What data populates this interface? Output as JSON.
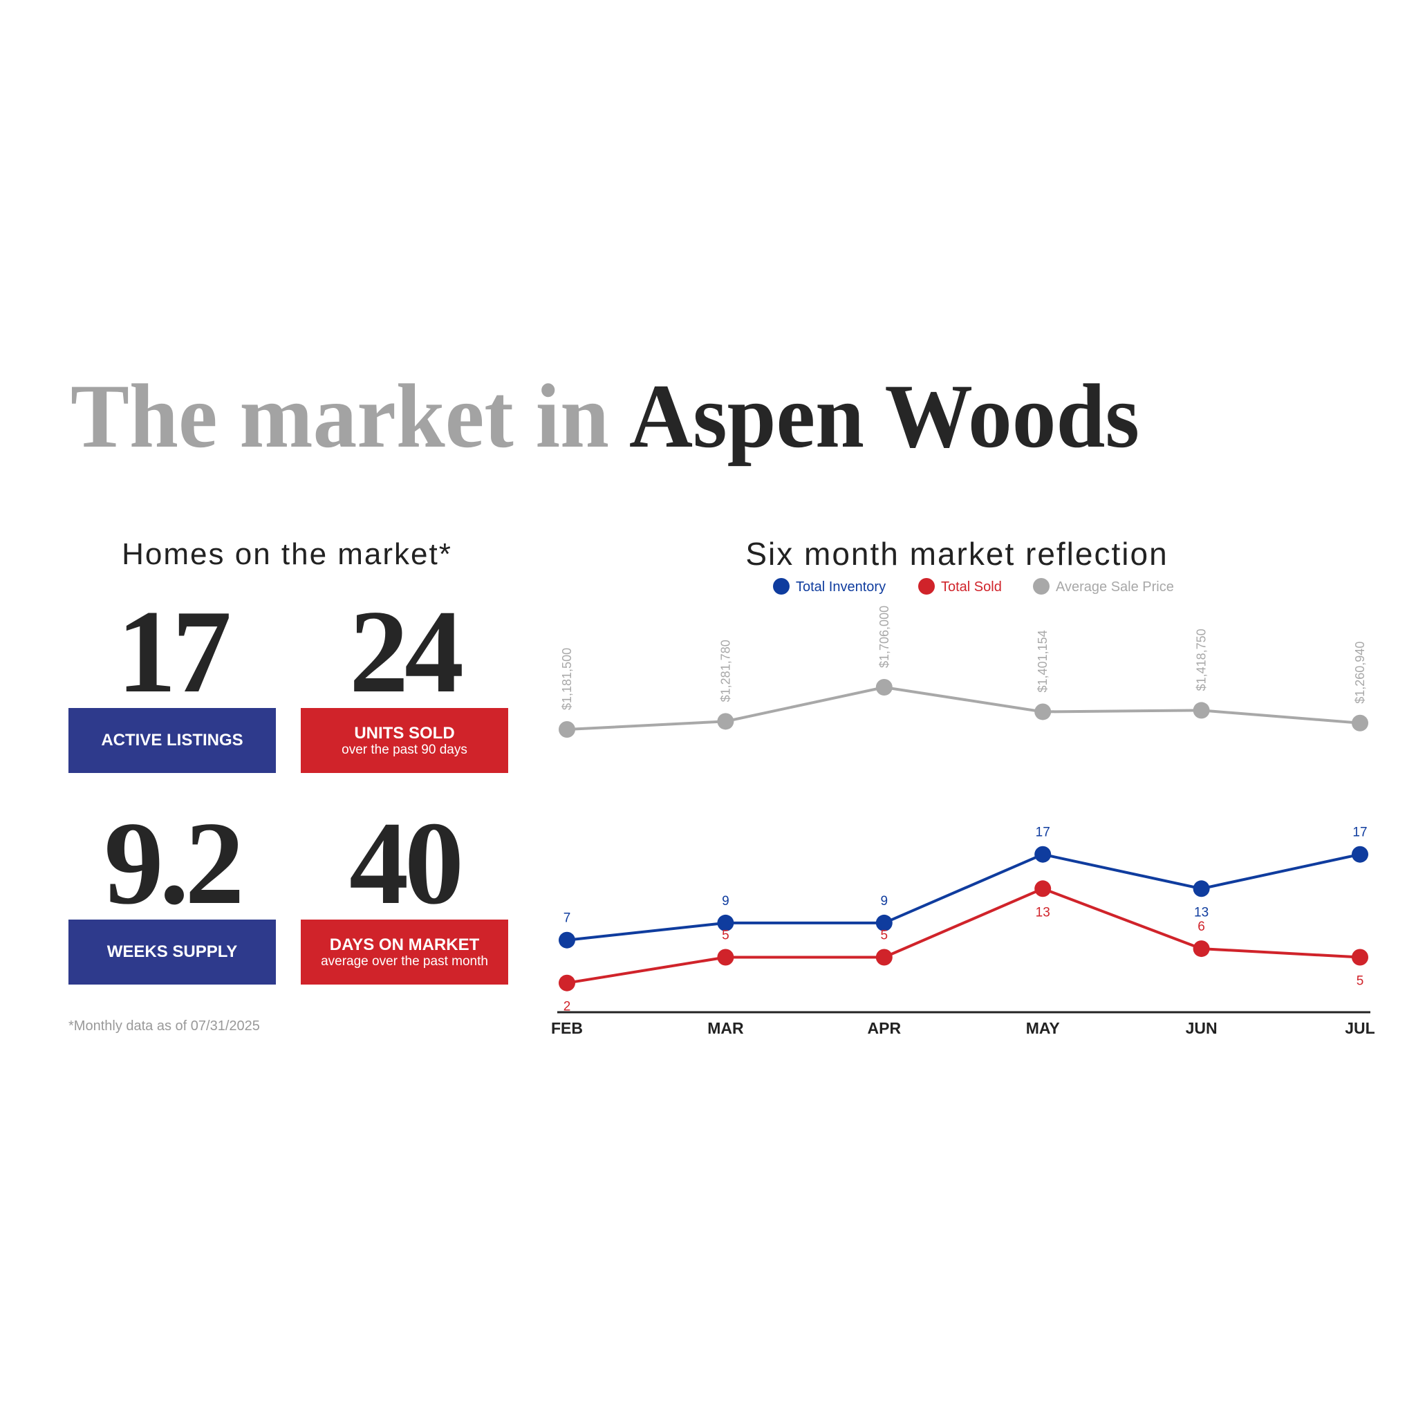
{
  "header": {
    "title_light": "The market in",
    "title_dark": "Aspen Woods"
  },
  "stats": {
    "title": "Homes on the market*",
    "items": [
      {
        "value": 17,
        "label": "ACTIVE LISTINGS",
        "color": "#2e3a8c"
      },
      {
        "value": 24,
        "label": "UNITS SOLD",
        "sublabel": "over the past 90 days",
        "color": "#d0232a"
      },
      {
        "value": 9.2,
        "label": "WEEKS SUPPLY",
        "color": "#2e3a8c"
      },
      {
        "value": 40,
        "label": "DAYS ON MARKET",
        "sublabel": "average over the past month",
        "color": "#d0232a"
      }
    ],
    "footnote": "*Monthly data as of 07/31/2025"
  },
  "chart_data": {
    "type": "line",
    "title": "Six month market reflection",
    "categories": [
      "FEB",
      "MAR",
      "APR",
      "MAY",
      "JUN",
      "JUL"
    ],
    "series": [
      {
        "name": "Total Inventory",
        "color": "#0f3c9e",
        "values": [
          7,
          9,
          9,
          17,
          13,
          17
        ]
      },
      {
        "name": "Total Sold",
        "color": "#d0232a",
        "values": [
          2,
          5,
          5,
          13,
          6,
          5
        ]
      },
      {
        "name": "Average Sale Price",
        "color": "#a8a8a8",
        "axis": "y2",
        "values": [
          1181500,
          1281780,
          1706000,
          1401154,
          1418750,
          1260940
        ],
        "value_labels": [
          "$1,181,500",
          "$1,281,780",
          "$1,706,000",
          "$1,401,154",
          "$1,418,750",
          "$1,260,940"
        ]
      }
    ]
  }
}
